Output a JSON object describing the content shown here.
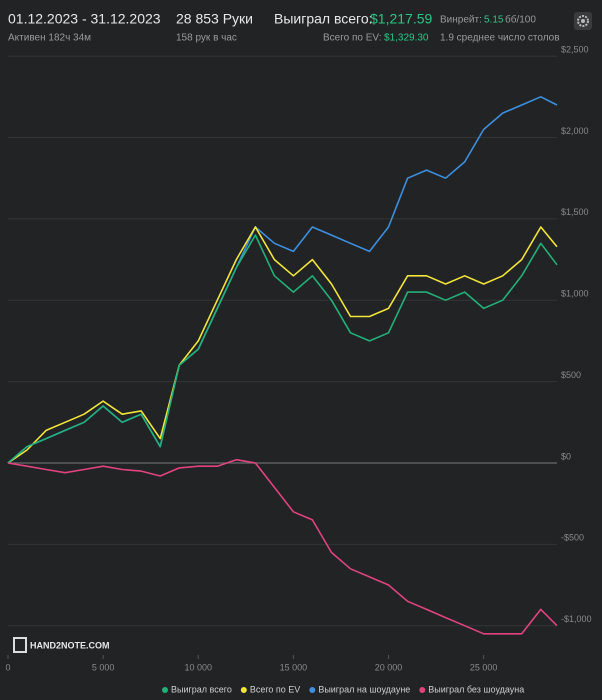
{
  "header": {
    "period": "01.12.2023 - 31.12.2023",
    "active": "Активен 182ч 34м",
    "hands": "28 853 Руки",
    "hands_per_hour": "158 рук в час",
    "won_label": "Выиграл всего:",
    "won_value": "$1,217.59",
    "ev_label": "Всего по EV:",
    "ev_value": "$1,329.30",
    "winrate_label": "Винрейт:",
    "winrate_value": "5.15",
    "winrate_unit": "бб/100",
    "tables": "1.9 среднее число столов",
    "logo": "HAND2NOTE.COM"
  },
  "chart_data": {
    "type": "line",
    "grid": true,
    "legend": "bottom",
    "x": [
      0,
      1000,
      2000,
      3000,
      4000,
      5000,
      6000,
      7000,
      8000,
      9000,
      10000,
      11000,
      12000,
      13000,
      14000,
      15000,
      16000,
      17000,
      18000,
      19000,
      20000,
      21000,
      22000,
      23000,
      24000,
      25000,
      26000,
      27000,
      28000,
      28853
    ],
    "xlim": [
      0,
      28853
    ],
    "xticks": [
      0,
      {
        "value": 5000,
        "label": "5 000"
      },
      {
        "value": 10000,
        "label": "10 000"
      },
      {
        "value": 15000,
        "label": "15 000"
      },
      {
        "value": 20000,
        "label": "20 000"
      },
      {
        "value": 25000,
        "label": "25 000"
      }
    ],
    "ylim": [
      -1180,
      2550
    ],
    "yticks": [
      {
        "value": -1000,
        "label": "-$1,000"
      },
      {
        "value": -500,
        "label": "-$500"
      },
      {
        "value": 0,
        "label": "$0"
      },
      {
        "value": 500,
        "label": "$500"
      },
      {
        "value": 1000,
        "label": "$1,000"
      },
      {
        "value": 1500,
        "label": "$1,500"
      },
      {
        "value": 2000,
        "label": "$2,000"
      },
      {
        "value": 2500,
        "label": "$2,500"
      }
    ],
    "series": [
      {
        "name": "Выиграл на шоудауне",
        "color": "#3d8fe0",
        "values": [
          0,
          100,
          150,
          200,
          250,
          350,
          250,
          300,
          100,
          600,
          700,
          950,
          1200,
          1450,
          1350,
          1300,
          1450,
          1400,
          1350,
          1300,
          1450,
          1750,
          1800,
          1750,
          1850,
          2050,
          2150,
          2200,
          2250,
          2200
        ]
      },
      {
        "name": "Всего по EV",
        "color": "#f2e53a",
        "values": [
          0,
          80,
          200,
          250,
          300,
          380,
          300,
          320,
          150,
          600,
          750,
          1000,
          1250,
          1450,
          1250,
          1150,
          1250,
          1100,
          900,
          900,
          950,
          1150,
          1150,
          1100,
          1150,
          1100,
          1150,
          1250,
          1450,
          1329.3
        ]
      },
      {
        "name": "Выиграл всего",
        "color": "#22b07a",
        "values": [
          0,
          100,
          150,
          200,
          250,
          350,
          250,
          300,
          100,
          600,
          700,
          950,
          1200,
          1400,
          1150,
          1050,
          1150,
          1000,
          800,
          750,
          800,
          1050,
          1050,
          1000,
          1050,
          950,
          1000,
          1150,
          1350,
          1217.59
        ]
      },
      {
        "name": "Выиграл без шоудауна",
        "color": "#e0447e",
        "values": [
          0,
          -20,
          -40,
          -60,
          -40,
          -20,
          -40,
          -50,
          -80,
          -30,
          -20,
          -20,
          20,
          0,
          -150,
          -300,
          -350,
          -550,
          -650,
          -700,
          -750,
          -850,
          -900,
          -950,
          -1000,
          -1050,
          -1050,
          -1050,
          -900,
          -1000
        ]
      }
    ]
  }
}
